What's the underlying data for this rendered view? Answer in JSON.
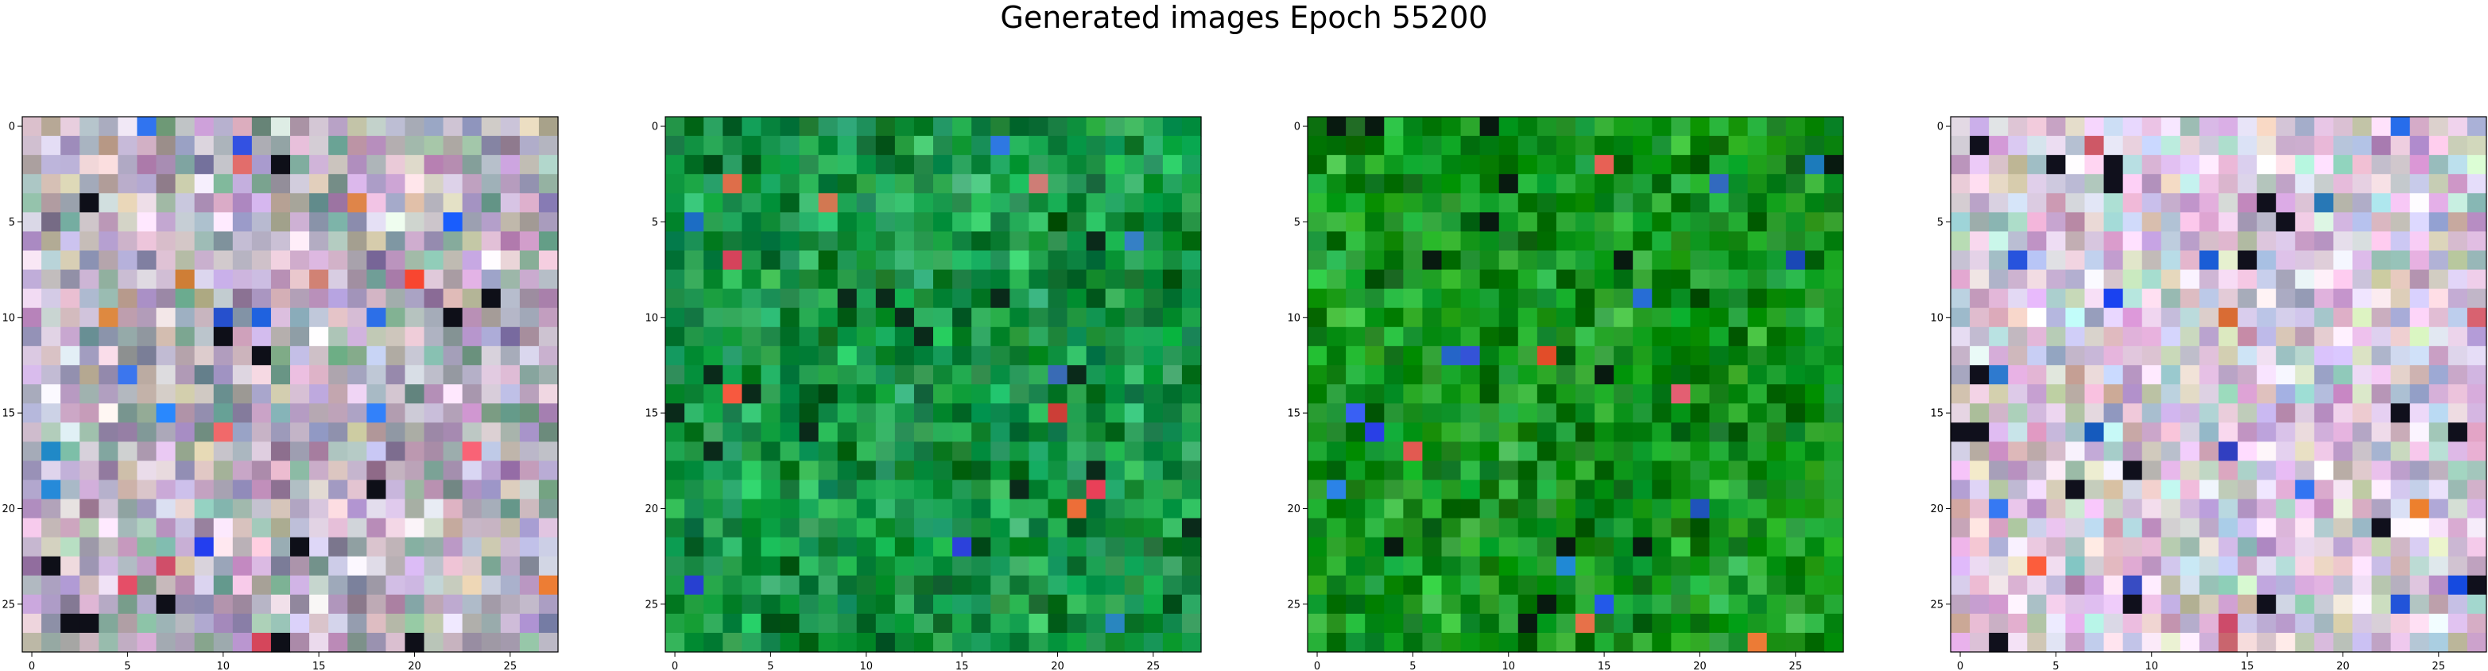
{
  "figure": {
    "title": "Generated images Epoch 55200"
  },
  "chart_data": [
    {
      "type": "heatmap",
      "rows": 28,
      "cols": 28,
      "palette": "muted-pastel",
      "palette_colors": [
        "#b9aed0",
        "#c8b8c9",
        "#a8a6be",
        "#c7b9a9",
        "#d8bfd3",
        "#aab6b0",
        "#7ea69a",
        "#c2a1c7",
        "#e6dce6",
        "#9e8fb0"
      ],
      "dark_pixel_color": "#0e0f18",
      "xticks": [
        0,
        5,
        10,
        15,
        20,
        25
      ],
      "yticks": [
        0,
        5,
        10,
        15,
        20,
        25
      ],
      "xlim": [
        -0.5,
        27.5
      ],
      "ylim": [
        27.5,
        -0.5
      ],
      "grid": false
    },
    {
      "type": "heatmap",
      "rows": 28,
      "cols": 28,
      "palette": "green",
      "palette_colors": [
        "#0e8a3a",
        "#1a9a48",
        "#0a7a32",
        "#2aa85c",
        "#078f3c",
        "#1f9b55",
        "#0b6e2c",
        "#23b35a",
        "#178f4a",
        "#0f9945"
      ],
      "dark_pixel_color": "#0a2a1a",
      "xticks": [
        0,
        5,
        10,
        15,
        20,
        25
      ],
      "yticks": [
        0,
        5,
        10,
        15,
        20,
        25
      ],
      "xlim": [
        -0.5,
        27.5
      ],
      "ylim": [
        27.5,
        -0.5
      ],
      "grid": false
    },
    {
      "type": "heatmap",
      "rows": 28,
      "cols": 28,
      "palette": "green-saturated",
      "palette_colors": [
        "#0d8a12",
        "#16961a",
        "#08780e",
        "#22a628",
        "#0f8f20",
        "#1a9e2e",
        "#0a6e12",
        "#2bb03a",
        "#159320",
        "#0c9a1c"
      ],
      "dark_pixel_color": "#081a10",
      "xticks": [
        0,
        5,
        10,
        15,
        20,
        25
      ],
      "yticks": [
        0,
        5,
        10,
        15,
        20,
        25
      ],
      "xlim": [
        -0.5,
        27.5
      ],
      "ylim": [
        27.5,
        -0.5
      ],
      "grid": false
    },
    {
      "type": "heatmap",
      "rows": 28,
      "cols": 28,
      "palette": "bright-pastel",
      "palette_colors": [
        "#d6b6de",
        "#e4c2d8",
        "#b9c2e0",
        "#cfd8c0",
        "#f0d6ea",
        "#a9d2cf",
        "#d4a6cf",
        "#e8e0f0",
        "#c4b4d8",
        "#dcc8b8"
      ],
      "dark_pixel_color": "#10101c",
      "xticks": [
        0,
        5,
        10,
        15,
        20,
        25
      ],
      "yticks": [
        0,
        5,
        10,
        15,
        20,
        25
      ],
      "xlim": [
        -0.5,
        27.5
      ],
      "ylim": [
        27.5,
        -0.5
      ],
      "grid": false
    }
  ]
}
